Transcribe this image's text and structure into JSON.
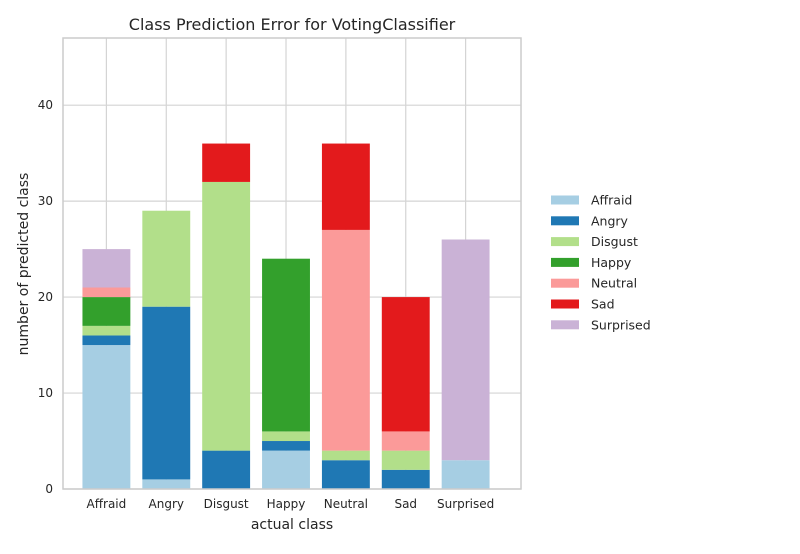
{
  "chart_data": {
    "type": "bar",
    "stacked": true,
    "title": "Class Prediction Error for VotingClassifier",
    "xlabel": "actual class",
    "ylabel": "number of predicted class",
    "ylim": [
      0,
      47
    ],
    "yticks": [
      0,
      10,
      20,
      30,
      40
    ],
    "grid": true,
    "legend_position": "right",
    "categories": [
      "Affraid",
      "Angry",
      "Disgust",
      "Happy",
      "Neutral",
      "Sad",
      "Surprised"
    ],
    "series": [
      {
        "name": "Affraid",
        "color": "#a6cee3",
        "values": [
          15,
          1,
          0,
          4,
          0,
          0,
          3
        ]
      },
      {
        "name": "Angry",
        "color": "#1f78b4",
        "values": [
          1,
          18,
          4,
          1,
          3,
          2,
          0
        ]
      },
      {
        "name": "Disgust",
        "color": "#b2df8a",
        "values": [
          1,
          10,
          28,
          1,
          1,
          2,
          0
        ]
      },
      {
        "name": "Happy",
        "color": "#33a02c",
        "values": [
          3,
          0,
          0,
          18,
          0,
          0,
          0
        ]
      },
      {
        "name": "Neutral",
        "color": "#fb9a99",
        "values": [
          1,
          0,
          0,
          0,
          23,
          2,
          0
        ]
      },
      {
        "name": "Sad",
        "color": "#e31a1c",
        "values": [
          0,
          0,
          4,
          0,
          9,
          14,
          0
        ]
      },
      {
        "name": "Surprised",
        "color": "#cab2d6",
        "values": [
          4,
          0,
          0,
          0,
          0,
          0,
          23
        ]
      }
    ]
  }
}
